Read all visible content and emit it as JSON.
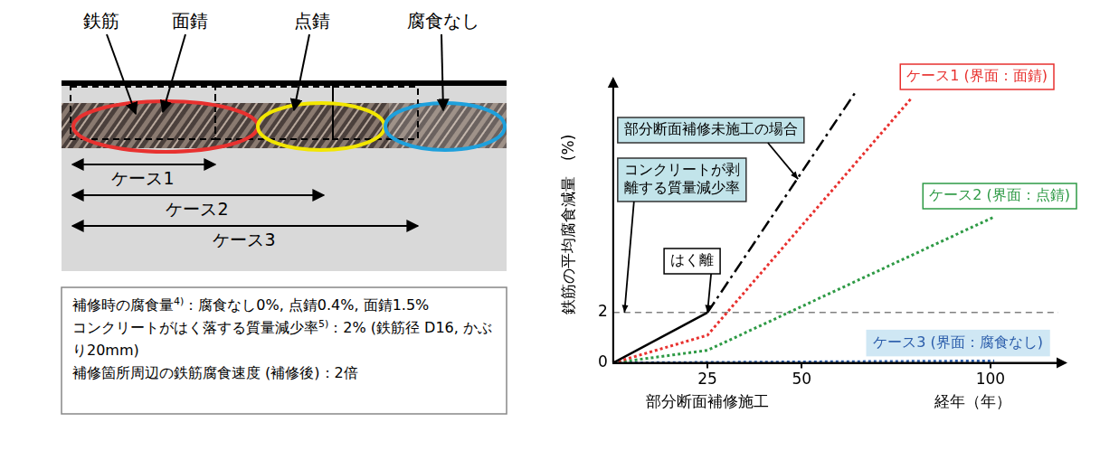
{
  "diagram": {
    "top_labels": [
      "鉄筋",
      "面錆",
      "点錆",
      "腐食なし"
    ],
    "cases": [
      "ケース1",
      "ケース2",
      "ケース3"
    ],
    "notes": [
      {
        "text": "補修時の腐食量",
        "sup": "4)",
        "rest": "：腐食なし0%, 点錆0.4%, 面錆1.5%"
      },
      {
        "text": "コンクリートがはく落する質量減少率",
        "sup": "5)",
        "rest": "：2% (鉄筋径 D16, かぶり20mm)"
      },
      {
        "text": "補修箇所周辺の鉄筋腐食速度 (補修後)",
        "rest": "：2倍"
      }
    ]
  },
  "chart_data": {
    "type": "line",
    "x_label": "経年（年）",
    "y_label": "鉄筋の平均腐食減量　(%)",
    "xlim": [
      0,
      118
    ],
    "xticks": [
      25,
      50,
      100
    ],
    "ylim": [
      0,
      11
    ],
    "yticks": [
      0,
      2
    ],
    "grid": false,
    "series": [
      {
        "color": "#000000",
        "line_style": "solid",
        "x": [
          0,
          25
        ],
        "values": [
          0,
          2
        ]
      },
      {
        "name": "部分断面補修未施工の場合",
        "color": "#000000",
        "line_style": "dashdot",
        "x": [
          25,
          64
        ],
        "values": [
          2,
          10.7
        ],
        "arrow_to": {
          "x": 49,
          "y": 7.3
        }
      },
      {
        "name": "ケース1 (界面：面錆)",
        "color": "#e8312f",
        "line_style": "dotted",
        "x": [
          0,
          25,
          79
        ],
        "values": [
          0,
          1.1,
          10.5
        ]
      },
      {
        "name": "ケース2 (界面：点錆)",
        "color": "#2e9a45",
        "line_style": "dotted",
        "x": [
          0,
          25,
          101
        ],
        "values": [
          0,
          0.5,
          5.8
        ]
      },
      {
        "name": "ケース3 (界面：腐食なし)",
        "color": "#2a5caa",
        "line_style": "dotted",
        "x": [
          0,
          25,
          101
        ],
        "values": [
          0,
          0.02,
          0.08
        ]
      }
    ],
    "reference_lines": [
      {
        "y": 2,
        "color": "#808080",
        "line_style": "dashed"
      }
    ],
    "annotations": [
      {
        "text": "コンクリートが剥離する質量減少率",
        "x": 3,
        "y": 2
      },
      {
        "text": "はく離",
        "x": 25,
        "y": 2
      }
    ],
    "x_annotations": [
      {
        "text": "部分断面補修施工",
        "x": 25
      }
    ]
  }
}
